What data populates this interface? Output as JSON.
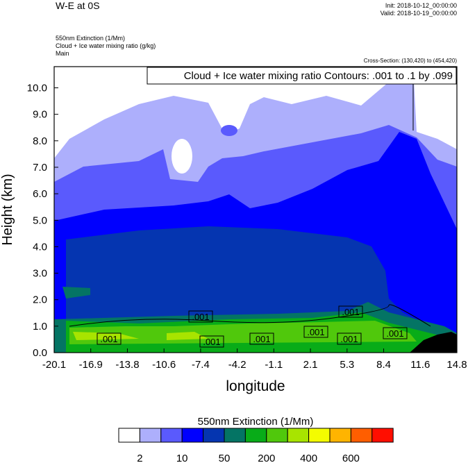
{
  "header": {
    "title": "W-E at 0S",
    "init": "Init: 2018-10-12_00:00:00",
    "valid": "Valid: 2018-10-19_00:00:00",
    "field1": "550nm Extinction   (1/Mm)",
    "field2": "Cloud + Ice water mixing ratio   (g/kg)",
    "field3": "Main",
    "cross_section": "Cross-Section: (130,420) to (454,420)"
  },
  "chart_data": {
    "type": "heatmap",
    "title": "W-E at 0S",
    "xlabel": "longitude",
    "ylabel": "Height (km)",
    "xlim": [
      -20.1,
      14.8
    ],
    "ylim": [
      0,
      10.8
    ],
    "x_ticks": [
      "-20.1",
      "-16.9",
      "-13.8",
      "-10.6",
      "-7.4",
      "-4.2",
      "-1.1",
      "2.1",
      "5.3",
      "8.4",
      "11.6",
      "14.8"
    ],
    "y_ticks": [
      "0.0",
      "1.0",
      "2.0",
      "3.0",
      "4.0",
      "5.0",
      "6.0",
      "7.0",
      "8.0",
      "9.0",
      "10.0"
    ],
    "contour_info": "Cloud + Ice water mixing ratio Contours: .001 to .1 by .099",
    "contour_labels": [
      ".001",
      ".001",
      ".001",
      ".001",
      ".001",
      ".001",
      ".001",
      ".001"
    ],
    "colorbar": {
      "title": "550nm Extinction  (1/Mm)",
      "colors": [
        "#ffffff",
        "#adaffc",
        "#5a5afd",
        "#0000fe",
        "#0535b0",
        "#047464",
        "#08ac18",
        "#50c80c",
        "#a8e400",
        "#f4fc00",
        "#ffb400",
        "#ff5e00",
        "#ff0e00"
      ],
      "labels": [
        "2",
        "10",
        "50",
        "200",
        "400",
        "600"
      ]
    }
  }
}
